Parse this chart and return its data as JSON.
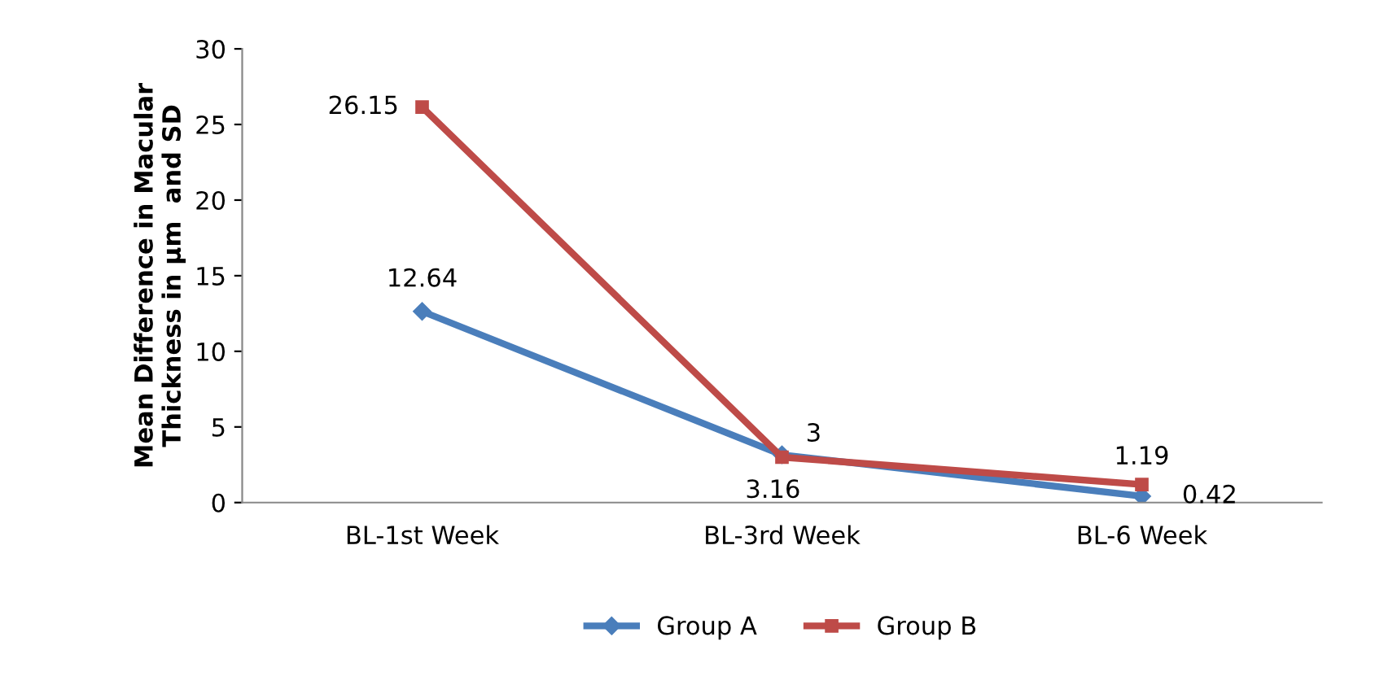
{
  "chart_data": {
    "type": "line",
    "ylabel": "Mean Difference in Macular\nThickness in µm  and SD",
    "categories": [
      "BL-1st Week",
      "BL-3rd Week",
      "BL-6 Week"
    ],
    "series": [
      {
        "name": "Group A",
        "color": "#4a7ebb",
        "values": [
          12.64,
          3.16,
          0.42
        ],
        "marker": "diamond"
      },
      {
        "name": "Group B",
        "color": "#be4b48",
        "values": [
          26.15,
          3,
          1.19
        ],
        "marker": "square"
      }
    ],
    "ylim": [
      0,
      30
    ],
    "yticks": [
      0,
      5,
      10,
      15,
      20,
      25,
      30
    ],
    "grid": false,
    "legend": "bottom",
    "data_labels": true
  }
}
